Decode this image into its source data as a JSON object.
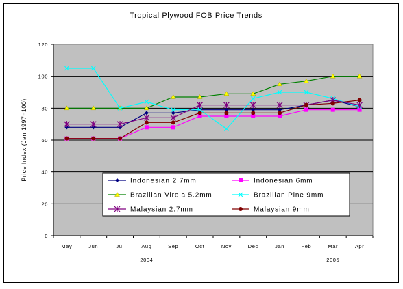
{
  "chart_data": {
    "type": "line",
    "title": "Tropical Plywood FOB Price Trends",
    "ylabel": "Price Index (Jan 1997=100)",
    "xlabel": "",
    "ylim": [
      0,
      120
    ],
    "yticks": [
      0,
      20,
      40,
      60,
      80,
      100,
      120
    ],
    "grid": "horizontal",
    "legend_position": "inside-lower-center",
    "categories": [
      "May",
      "Jun",
      "Jul",
      "Aug",
      "Sep",
      "Oct",
      "Nov",
      "Dec",
      "Jan",
      "Feb",
      "Mar",
      "Apr"
    ],
    "year_labels": [
      {
        "label": "2004",
        "category": "Aug"
      },
      {
        "label": "2005",
        "category": "Mar"
      }
    ],
    "series": [
      {
        "name": "Indonesian 2.7mm",
        "color": "#000080",
        "marker": "diamond",
        "values": [
          68,
          68,
          68,
          77,
          77,
          79,
          79,
          79,
          79,
          82,
          85,
          81
        ]
      },
      {
        "name": "Indonesian 6mm",
        "color": "#ff00ff",
        "marker": "square",
        "values": [
          61,
          61,
          61,
          68,
          68,
          75,
          75,
          75,
          75,
          79,
          79,
          79
        ]
      },
      {
        "name": "Brazilian Virola 5.2mm",
        "color": "#008000",
        "marker": "triangle",
        "values": [
          80,
          80,
          80,
          80,
          87,
          87,
          89,
          89,
          95,
          97,
          100,
          100
        ]
      },
      {
        "name": "Brazilian Pine 9mm",
        "color": "#00ffff",
        "marker": "x",
        "values": [
          105,
          105,
          80,
          84,
          79,
          79,
          67,
          86,
          90,
          90,
          86,
          81
        ]
      },
      {
        "name": "Malaysian 2.7mm",
        "color": "#800080",
        "marker": "star",
        "values": [
          70,
          70,
          70,
          74,
          74,
          82,
          82,
          82,
          82,
          82,
          85,
          82
        ]
      },
      {
        "name": "Malaysian 9mm",
        "color": "#800000",
        "marker": "circle",
        "values": [
          61,
          61,
          61,
          71,
          71,
          77,
          77,
          77,
          77,
          82,
          83,
          85
        ]
      }
    ]
  }
}
